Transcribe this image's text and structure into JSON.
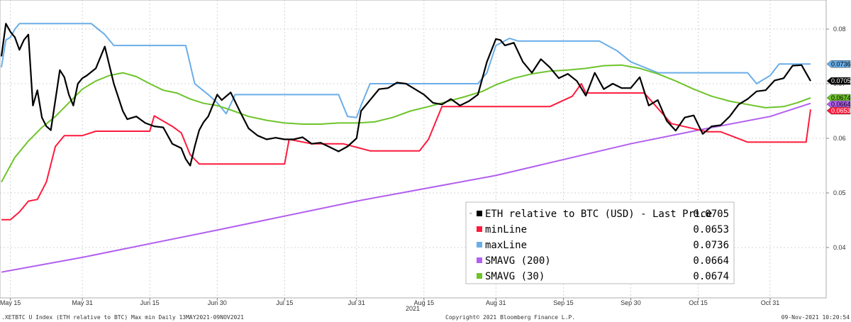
{
  "chart_data": {
    "type": "line",
    "title": "",
    "xlabel": "",
    "ylabel": "",
    "year_label": "2021",
    "ylim": [
      0.035,
      0.085
    ],
    "y_ticks": [
      "0.08",
      "0.07",
      "0.06",
      "0.05",
      "0.04"
    ],
    "x_tick_labels": [
      "May 15",
      "May 31",
      "Jun 15",
      "Jun 30",
      "Jul 15",
      "Jul 31",
      "Aug 15",
      "Aug 31",
      "Sep 15",
      "Sep 30",
      "Oct 15",
      "Oct 31"
    ],
    "x_range": [
      "2021-05-13",
      "2021-11-09"
    ],
    "legend_placement": "bottom-right",
    "series": [
      {
        "name": "ETH relative to BTC (USD) - Last Price",
        "last": "0.0705",
        "color": "#000000",
        "x": [
          "2021-05-13",
          "2021-05-14",
          "2021-05-15",
          "2021-05-16",
          "2021-05-17",
          "2021-05-18",
          "2021-05-19",
          "2021-05-20",
          "2021-05-21",
          "2021-05-22",
          "2021-05-23",
          "2021-05-24",
          "2021-05-25",
          "2021-05-26",
          "2021-05-27",
          "2021-05-28",
          "2021-05-29",
          "2021-05-30",
          "2021-05-31",
          "2021-06-01",
          "2021-06-03",
          "2021-06-05",
          "2021-06-07",
          "2021-06-09",
          "2021-06-10",
          "2021-06-12",
          "2021-06-14",
          "2021-06-16",
          "2021-06-18",
          "2021-06-20",
          "2021-06-22",
          "2021-06-23",
          "2021-06-24",
          "2021-06-25",
          "2021-06-26",
          "2021-06-27",
          "2021-06-28",
          "2021-06-29",
          "2021-06-30",
          "2021-07-01",
          "2021-07-03",
          "2021-07-05",
          "2021-07-07",
          "2021-07-09",
          "2021-07-11",
          "2021-07-13",
          "2021-07-15",
          "2021-07-17",
          "2021-07-19",
          "2021-07-21",
          "2021-07-23",
          "2021-07-25",
          "2021-07-27",
          "2021-07-29",
          "2021-07-31",
          "2021-08-01",
          "2021-08-03",
          "2021-08-05",
          "2021-08-07",
          "2021-08-09",
          "2021-08-11",
          "2021-08-13",
          "2021-08-15",
          "2021-08-17",
          "2021-08-19",
          "2021-08-21",
          "2021-08-23",
          "2021-08-25",
          "2021-08-27",
          "2021-08-29",
          "2021-08-31",
          "2021-09-01",
          "2021-09-02",
          "2021-09-04",
          "2021-09-06",
          "2021-09-08",
          "2021-09-10",
          "2021-09-12",
          "2021-09-14",
          "2021-09-16",
          "2021-09-18",
          "2021-09-20",
          "2021-09-22",
          "2021-09-24",
          "2021-09-26",
          "2021-09-28",
          "2021-09-30",
          "2021-10-02",
          "2021-10-04",
          "2021-10-06",
          "2021-10-08",
          "2021-10-10",
          "2021-10-12",
          "2021-10-14",
          "2021-10-16",
          "2021-10-18",
          "2021-10-20",
          "2021-10-22",
          "2021-10-24",
          "2021-10-26",
          "2021-10-28",
          "2021-10-30",
          "2021-11-01",
          "2021-11-03",
          "2021-11-05",
          "2021-11-07",
          "2021-11-09"
        ],
        "values": [
          0.075,
          0.081,
          0.0795,
          0.0785,
          0.0762,
          0.078,
          0.079,
          0.066,
          0.0688,
          0.0638,
          0.0622,
          0.0615,
          0.067,
          0.0725,
          0.0712,
          0.068,
          0.066,
          0.07,
          0.071,
          0.0715,
          0.0728,
          0.0768,
          0.07,
          0.065,
          0.0635,
          0.064,
          0.0628,
          0.0622,
          0.062,
          0.059,
          0.0582,
          0.0562,
          0.055,
          0.0585,
          0.0615,
          0.063,
          0.064,
          0.066,
          0.068,
          0.067,
          0.0684,
          0.065,
          0.0618,
          0.0605,
          0.0598,
          0.0601,
          0.0598,
          0.0598,
          0.0602,
          0.059,
          0.0592,
          0.0584,
          0.0576,
          0.0585,
          0.06,
          0.065,
          0.067,
          0.069,
          0.0692,
          0.0702,
          0.07,
          0.069,
          0.068,
          0.0665,
          0.0662,
          0.0672,
          0.066,
          0.0668,
          0.068,
          0.074,
          0.0782,
          0.078,
          0.077,
          0.0775,
          0.074,
          0.072,
          0.0745,
          0.073,
          0.071,
          0.0718,
          0.0705,
          0.0678,
          0.072,
          0.069,
          0.07,
          0.0692,
          0.0692,
          0.0712,
          0.066,
          0.067,
          0.0632,
          0.0614,
          0.0638,
          0.0642,
          0.0608,
          0.0622,
          0.0624,
          0.064,
          0.0662,
          0.0672,
          0.0686,
          0.0688,
          0.0706,
          0.071,
          0.0733,
          0.0734,
          0.0705
        ]
      },
      {
        "name": "minLine",
        "last": "0.0653",
        "color": "#ff1a3c",
        "x": [
          "2021-05-13",
          "2021-05-15",
          "2021-05-17",
          "2021-05-19",
          "2021-05-21",
          "2021-05-23",
          "2021-05-25",
          "2021-05-27",
          "2021-05-31",
          "2021-06-03",
          "2021-06-05",
          "2021-06-10",
          "2021-06-15",
          "2021-06-16",
          "2021-06-20",
          "2021-06-22",
          "2021-06-24",
          "2021-06-26",
          "2021-07-01",
          "2021-07-10",
          "2021-07-14",
          "2021-07-15",
          "2021-07-16",
          "2021-07-21",
          "2021-07-28",
          "2021-08-03",
          "2021-08-09",
          "2021-08-14",
          "2021-08-16",
          "2021-08-19",
          "2021-08-20",
          "2021-08-31",
          "2021-09-07",
          "2021-09-12",
          "2021-09-17",
          "2021-09-19",
          "2021-09-20",
          "2021-09-30",
          "2021-10-03",
          "2021-10-09",
          "2021-10-17",
          "2021-10-20",
          "2021-10-26",
          "2021-11-06",
          "2021-11-08",
          "2021-11-09"
        ],
        "values": [
          0.0451,
          0.0451,
          0.0465,
          0.0485,
          0.0488,
          0.052,
          0.0585,
          0.0605,
          0.0605,
          0.0613,
          0.0613,
          0.0613,
          0.0613,
          0.0641,
          0.0622,
          0.061,
          0.057,
          0.0553,
          0.0553,
          0.0553,
          0.0553,
          0.0553,
          0.0598,
          0.059,
          0.059,
          0.0577,
          0.0577,
          0.0577,
          0.0598,
          0.0658,
          0.0658,
          0.0658,
          0.0658,
          0.0658,
          0.0677,
          0.07,
          0.0683,
          0.0683,
          0.0683,
          0.0627,
          0.0612,
          0.0612,
          0.0593,
          0.0593,
          0.0593,
          0.0653
        ]
      },
      {
        "name": "maxLine",
        "last": "0.0736",
        "color": "#6aaee8",
        "x": [
          "2021-05-13",
          "2021-05-14",
          "2021-05-15",
          "2021-05-16",
          "2021-05-17",
          "2021-05-18",
          "2021-06-02",
          "2021-06-05",
          "2021-06-07",
          "2021-06-20",
          "2021-06-23",
          "2021-06-25",
          "2021-06-28",
          "2021-06-30",
          "2021-07-02",
          "2021-07-04",
          "2021-07-27",
          "2021-07-29",
          "2021-07-31",
          "2021-08-01",
          "2021-08-03",
          "2021-08-04",
          "2021-08-27",
          "2021-08-29",
          "2021-08-31",
          "2021-09-03",
          "2021-09-05",
          "2021-09-23",
          "2021-09-27",
          "2021-09-30",
          "2021-10-06",
          "2021-10-08",
          "2021-10-09",
          "2021-10-26",
          "2021-10-28",
          "2021-10-31",
          "2021-11-02",
          "2021-11-09"
        ],
        "values": [
          0.073,
          0.078,
          0.0785,
          0.08,
          0.081,
          0.081,
          0.081,
          0.079,
          0.077,
          0.077,
          0.077,
          0.07,
          0.068,
          0.0665,
          0.0645,
          0.068,
          0.068,
          0.064,
          0.0638,
          0.066,
          0.07,
          0.07,
          0.07,
          0.072,
          0.077,
          0.0783,
          0.0778,
          0.0778,
          0.076,
          0.074,
          0.072,
          0.072,
          0.072,
          0.072,
          0.07,
          0.0715,
          0.0736,
          0.0736
        ]
      },
      {
        "name": "SMAVG (200)",
        "last": "0.0664",
        "color": "#b25ff0",
        "x": [
          "2021-05-13",
          "2021-05-31",
          "2021-06-30",
          "2021-07-31",
          "2021-08-31",
          "2021-09-30",
          "2021-10-15",
          "2021-10-31",
          "2021-11-09"
        ],
        "values": [
          0.0355,
          0.0382,
          0.0432,
          0.0485,
          0.0532,
          0.059,
          0.0615,
          0.064,
          0.0664
        ]
      },
      {
        "name": "SMAVG (30)",
        "last": "0.0674",
        "color": "#6ec42a",
        "x": [
          "2021-05-13",
          "2021-05-16",
          "2021-05-19",
          "2021-05-22",
          "2021-05-25",
          "2021-05-28",
          "2021-05-31",
          "2021-06-03",
          "2021-06-06",
          "2021-06-09",
          "2021-06-12",
          "2021-06-15",
          "2021-06-18",
          "2021-06-21",
          "2021-06-24",
          "2021-06-27",
          "2021-06-30",
          "2021-07-03",
          "2021-07-07",
          "2021-07-11",
          "2021-07-15",
          "2021-07-19",
          "2021-07-23",
          "2021-07-27",
          "2021-07-31",
          "2021-08-04",
          "2021-08-08",
          "2021-08-12",
          "2021-08-16",
          "2021-08-20",
          "2021-08-24",
          "2021-08-28",
          "2021-08-31",
          "2021-09-04",
          "2021-09-08",
          "2021-09-12",
          "2021-09-16",
          "2021-09-20",
          "2021-09-24",
          "2021-09-28",
          "2021-10-02",
          "2021-10-06",
          "2021-10-10",
          "2021-10-14",
          "2021-10-18",
          "2021-10-22",
          "2021-10-26",
          "2021-10-30",
          "2021-11-03",
          "2021-11-06",
          "2021-11-09"
        ],
        "values": [
          0.052,
          0.0565,
          0.0595,
          0.062,
          0.064,
          0.0665,
          0.069,
          0.0705,
          0.0715,
          0.072,
          0.0713,
          0.07,
          0.0688,
          0.0683,
          0.0672,
          0.0664,
          0.066,
          0.0652,
          0.064,
          0.0633,
          0.0628,
          0.0626,
          0.0626,
          0.0628,
          0.0628,
          0.063,
          0.0638,
          0.065,
          0.0658,
          0.0667,
          0.0676,
          0.0686,
          0.0698,
          0.071,
          0.0718,
          0.0723,
          0.0725,
          0.0728,
          0.0733,
          0.0734,
          0.0728,
          0.0718,
          0.0705,
          0.069,
          0.0677,
          0.0668,
          0.0662,
          0.0656,
          0.0658,
          0.0665,
          0.0674
        ]
      }
    ]
  },
  "footer": {
    "left": ".XETBTC U Index (ETH relative to BTC) Max min  Daily 13MAY2021-09NOV2021",
    "center": "Copyright© 2021 Bloomberg Finance L.P.",
    "right": "09-Nov-2021 10:20:54"
  },
  "legend_marker": "◦"
}
